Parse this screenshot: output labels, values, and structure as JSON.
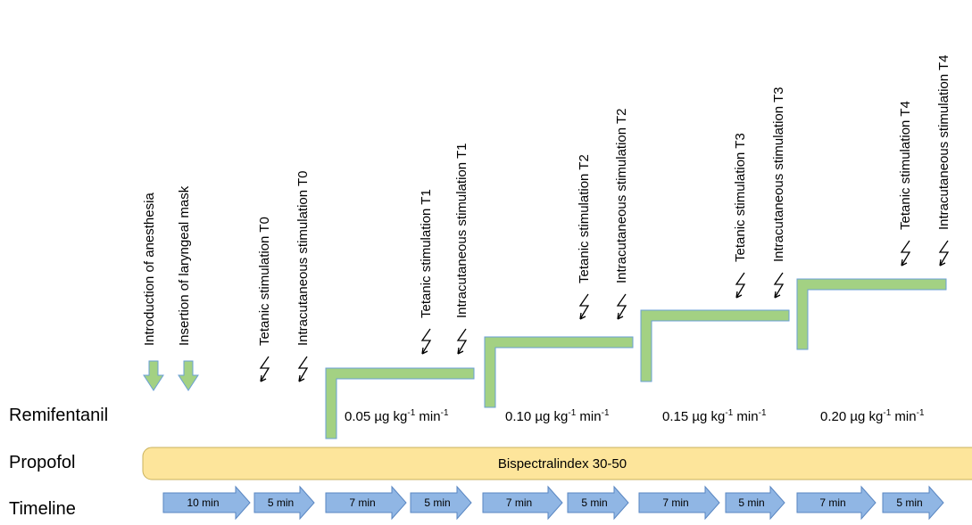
{
  "events": [
    "Introduction of anesthesia",
    "Insertion of laryngeal mask",
    "Tetanic stimulation T0",
    "Intracutaneous stimulation T0",
    "Tetanic stimulation T1",
    "Intracutaneous stimulation T1",
    "Tetanic stimulation T2",
    "Intracutaneous stimulation T2",
    "Tetanic stimulation T3",
    "Intracutaneous stimulation T3",
    "Tetanic stimulation T4",
    "Intracutaneous stimulation T4"
  ],
  "row_labels": {
    "remifentanil": "Remifentanil",
    "propofol": "Propofol",
    "timeline": "Timeline"
  },
  "propofol_bar": "Bispectralindex 30-50",
  "doses": [
    {
      "prefix": "0.05 µg kg",
      "sup1": "-1",
      "mid": " min",
      "sup2": "-1"
    },
    {
      "prefix": "0.10 µg kg",
      "sup1": "-1",
      "mid": " min",
      "sup2": "-1"
    },
    {
      "prefix": "0.15 µg kg",
      "sup1": "-1",
      "mid": " min",
      "sup2": "-1"
    },
    {
      "prefix": "0.20 µg kg",
      "sup1": "-1",
      "mid": " min",
      "sup2": "-1"
    }
  ],
  "timeline": [
    "10 min",
    "5 min",
    "7 min",
    "5 min",
    "7 min",
    "5 min",
    "7 min",
    "5 min",
    "7 min",
    "5 min"
  ]
}
